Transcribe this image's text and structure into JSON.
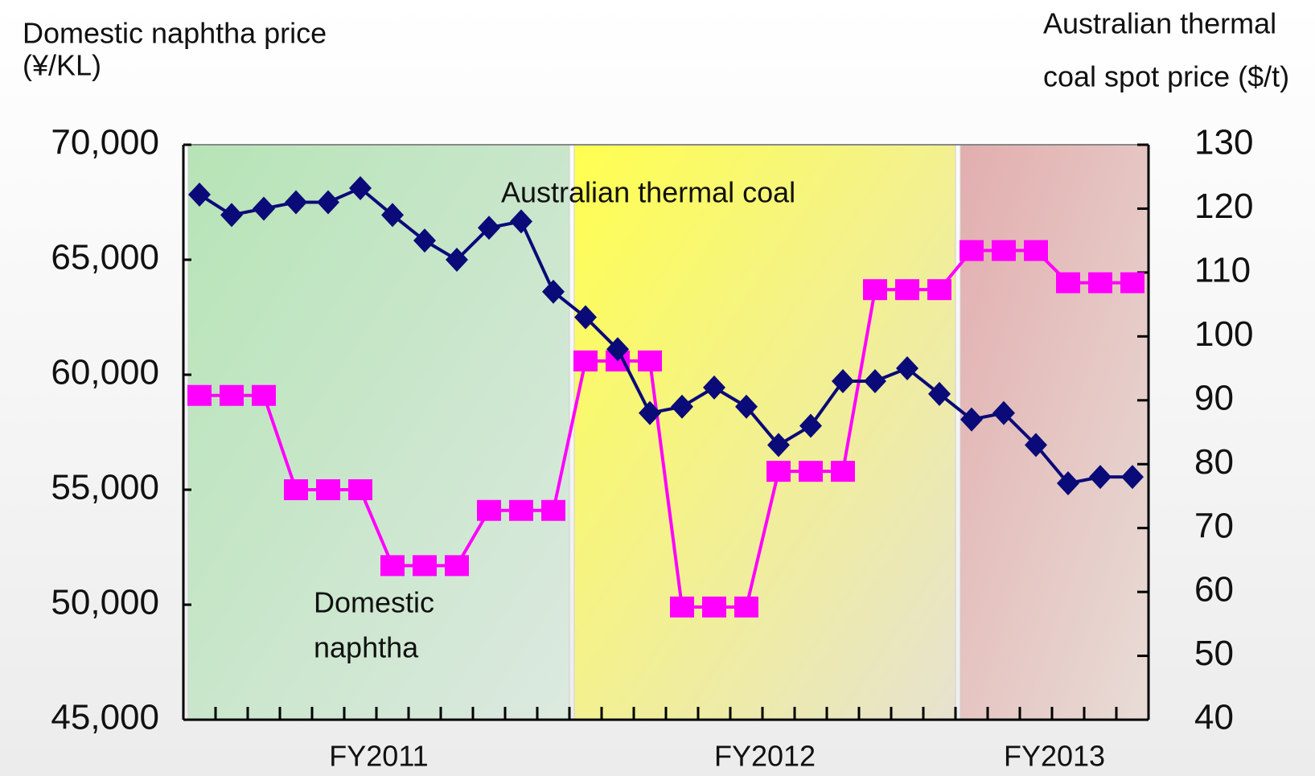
{
  "chart_data": {
    "type": "line",
    "y_label": [
      "Domestic naphtha price",
      "(¥/KL)"
    ],
    "y2_label": [
      "Australian thermal",
      "coal spot price ($/t)"
    ],
    "annotations": {
      "coal": "Australian thermal coal",
      "naphtha": [
        "Domestic",
        "naphtha"
      ]
    },
    "categories": [
      null,
      null,
      null,
      null,
      null,
      null,
      null,
      null,
      null,
      null,
      null,
      null,
      null,
      null,
      null,
      null,
      null,
      null,
      null,
      null,
      null,
      null,
      null,
      null,
      null,
      null,
      null,
      null,
      null,
      null
    ],
    "periods": [
      {
        "label": "FY2011",
        "count": 12
      },
      {
        "label": "FY2012",
        "count": 12
      },
      {
        "label": "FY2013",
        "count": 6
      }
    ],
    "series": [
      {
        "name": "Domestic naphtha",
        "color": "#ff00ff",
        "marker": "square",
        "values": [
          59100,
          59100,
          59100,
          55000,
          55000,
          55000,
          51700,
          51700,
          51700,
          54100,
          54100,
          54100,
          60600,
          60600,
          60600,
          49900,
          49900,
          49900,
          55800,
          55800,
          55800,
          63700,
          63700,
          63700,
          65400,
          65400,
          65400,
          64000,
          64000,
          64000
        ]
      },
      {
        "name": "Australian thermal coal",
        "color": "#0a0a78",
        "marker": "diamond",
        "axis": "y2",
        "values": [
          122.2,
          119,
          120,
          121,
          121,
          123.2,
          119,
          115,
          112,
          117,
          118,
          107,
          103,
          98,
          88,
          89,
          92,
          89,
          83,
          86,
          93,
          93,
          95,
          91,
          87,
          88,
          83,
          77,
          78,
          78
        ]
      }
    ],
    "ylim": [
      45000,
      70000
    ],
    "yticks": [
      {
        "value": 45000,
        "label": "45,000"
      },
      {
        "value": 50000,
        "label": "50,000"
      },
      {
        "value": 55000,
        "label": "55,000"
      },
      {
        "value": 60000,
        "label": "60,000"
      },
      {
        "value": 65000,
        "label": "65,000"
      },
      {
        "value": 70000,
        "label": "70,000"
      }
    ],
    "y2lim": [
      40,
      130
    ],
    "y2ticks": [
      40,
      50,
      60,
      70,
      80,
      90,
      100,
      110,
      120,
      130
    ]
  }
}
